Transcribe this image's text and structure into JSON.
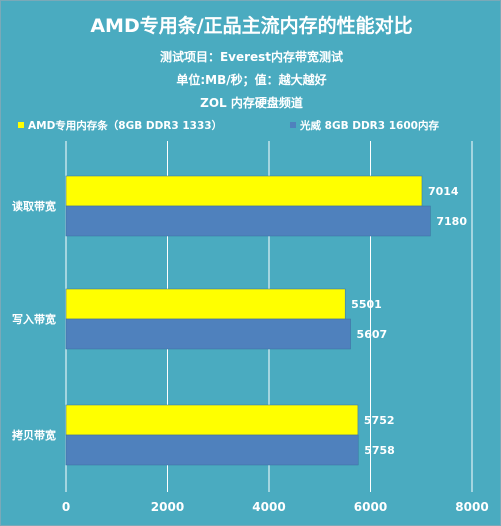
{
  "header": {
    "title": "AMD专用条/正品主流内存的性能对比",
    "line1": "测试项目：Everest内存带宽测试",
    "line2": "单位:MB/秒；值：越大越好",
    "line3": "ZOL 内存硬盘频道"
  },
  "colors": {
    "background": "#4aabc0",
    "series_amd": "#ffff00",
    "series_guangwei": "#4f81bd",
    "text": "#ffffff"
  },
  "chart_data": {
    "type": "bar",
    "orientation": "horizontal",
    "categories": [
      "读取带宽",
      "写入带宽",
      "拷贝带宽"
    ],
    "series": [
      {
        "name": "AMD专用内存条（8GB DDR3 1333）",
        "values": [
          7014,
          5501,
          5752
        ]
      },
      {
        "name": "光威  8GB DDR3 1600内存",
        "values": [
          7180,
          5607,
          5758
        ]
      }
    ],
    "xlim": [
      0,
      8000
    ],
    "xticks": [
      0,
      2000,
      4000,
      6000,
      8000
    ],
    "grid": true,
    "legend": "top-left"
  }
}
